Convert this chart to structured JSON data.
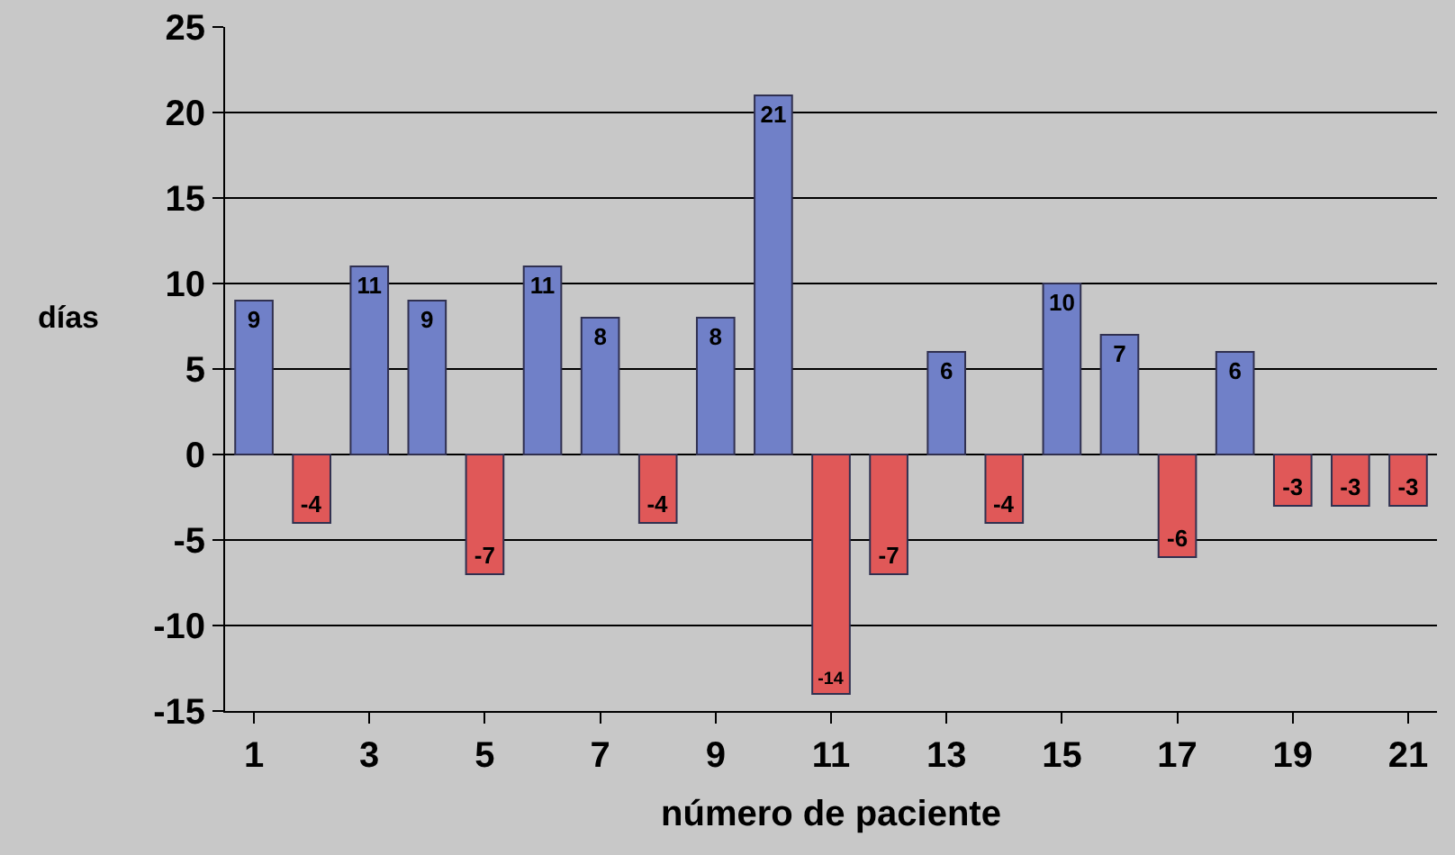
{
  "chart_data": {
    "type": "bar",
    "xlabel": "número de paciente",
    "ylabel": "días",
    "x": [
      1,
      2,
      3,
      4,
      5,
      6,
      7,
      8,
      9,
      10,
      11,
      12,
      13,
      14,
      15,
      16,
      17,
      18,
      19,
      20,
      21
    ],
    "values": [
      9,
      -4,
      11,
      9,
      -7,
      11,
      8,
      -4,
      8,
      21,
      -14,
      -7,
      6,
      -4,
      10,
      7,
      -6,
      6,
      -3,
      -3,
      -3
    ],
    "colors": [
      "#7080c8",
      "#e05858",
      "#7080c8",
      "#7080c8",
      "#e05858",
      "#7080c8",
      "#7080c8",
      "#e05858",
      "#7080c8",
      "#7080c8",
      "#e05858",
      "#e05858",
      "#7080c8",
      "#e05858",
      "#7080c8",
      "#7080c8",
      "#e05858",
      "#7080c8",
      "#e05858",
      "#e05858",
      "#e05858"
    ],
    "xlim": [
      0.5,
      21.5
    ],
    "xticks": [
      1,
      3,
      5,
      7,
      9,
      11,
      13,
      15,
      17,
      19,
      21
    ],
    "ylim": [
      -15,
      25
    ],
    "yticks": [
      -15,
      -10,
      -5,
      0,
      5,
      10,
      15,
      20,
      25
    ],
    "grid": "y",
    "data_labels": true
  }
}
